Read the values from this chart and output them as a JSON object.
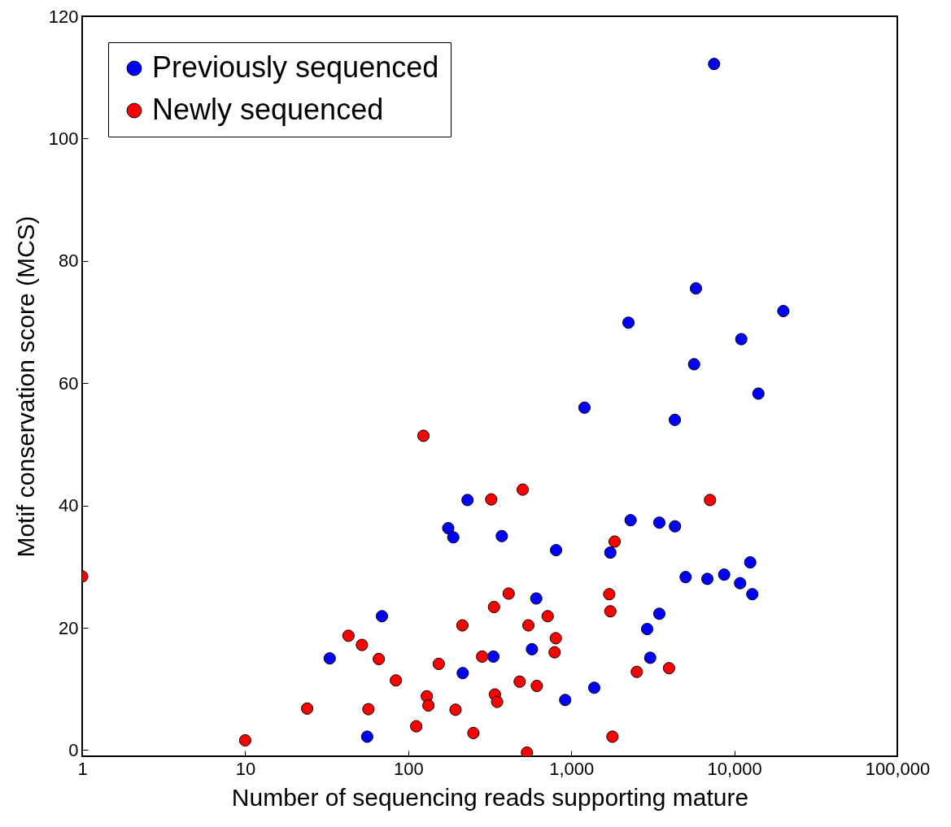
{
  "chart_data": {
    "type": "scatter",
    "xlabel": "Number of sequencing reads supporting mature",
    "ylabel": "Motif conservation score (MCS)",
    "log": "x",
    "xlim": [
      1,
      100000
    ],
    "xticks": [
      1,
      10,
      100,
      {
        "value": 1000,
        "label": "1,000"
      },
      {
        "value": 10000,
        "label": "10,000"
      },
      {
        "value": 100000,
        "label": "100,000"
      }
    ],
    "ylim": [
      -1,
      120
    ],
    "yticks": [
      0,
      20,
      40,
      60,
      80,
      100,
      120
    ],
    "legend": "top left",
    "marker": "circle",
    "series": [
      {
        "name": "Previously sequenced",
        "color": "#0000ff",
        "x": [
          33,
          69,
          56,
          1206,
          4320,
          231,
          176,
          189,
          375,
          807,
          1737,
          2313,
          3470,
          4330,
          610,
          574,
          333,
          216,
          918,
          1384,
          3470,
          2922,
          3050,
          7520,
          5820,
          20000,
          2244,
          11040,
          5670,
          14060,
          5030,
          6840,
          8670,
          10860,
          12530,
          12900
        ],
        "values": [
          15.0,
          21.9,
          2.2,
          56.0,
          54.0,
          40.9,
          36.3,
          34.8,
          35.0,
          32.7,
          32.3,
          37.6,
          37.2,
          36.6,
          24.8,
          16.5,
          15.3,
          12.6,
          8.2,
          10.2,
          22.3,
          19.8,
          15.1,
          112.2,
          75.5,
          71.8,
          69.9,
          67.2,
          63.1,
          58.3,
          28.3,
          28.0,
          28.7,
          27.3,
          30.7,
          25.5
        ]
      },
      {
        "name": "Newly sequenced",
        "color": "#ff0000",
        "x": [
          1,
          10,
          24,
          43,
          52,
          66,
          84,
          57,
          124,
          112,
          130,
          133,
          154,
          195,
          215,
          251,
          284,
          323,
          336,
          340,
          351,
          413,
          483,
          504,
          535,
          546,
          615,
          717,
          804,
          791,
          1710,
          1737,
          1846,
          1789,
          2525,
          3980,
          7100
        ],
        "values": [
          28.4,
          1.6,
          6.8,
          18.7,
          17.2,
          14.9,
          11.4,
          6.7,
          51.4,
          3.9,
          8.8,
          7.3,
          14.1,
          6.6,
          20.4,
          2.8,
          15.3,
          41.0,
          23.4,
          9.1,
          7.9,
          25.6,
          11.2,
          42.6,
          -0.4,
          20.4,
          10.5,
          21.9,
          18.3,
          16.0,
          25.5,
          22.7,
          34.1,
          2.2,
          12.8,
          13.4,
          40.9
        ]
      }
    ]
  }
}
